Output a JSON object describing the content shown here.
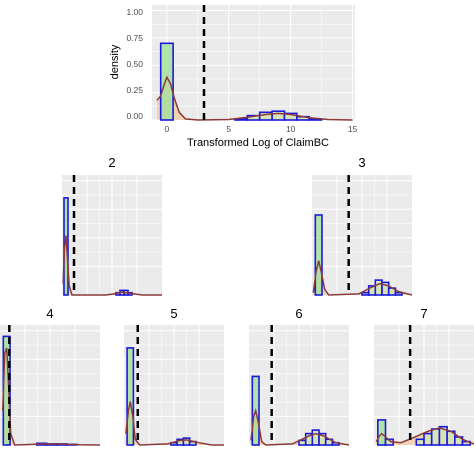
{
  "colors": {
    "panel_bg": "#ebebeb",
    "grid": "#ffffff",
    "bar_fill_outlier": "#a8e0a0",
    "bar_fill_main": "#d4e6b5",
    "bar_border": "#1a1adb",
    "density_fill": "#f2c9a3",
    "density_line": "#8b3a3a",
    "threshold_line": "#000000"
  },
  "main": {
    "xlabel": "Transformed Log of ClaimBC",
    "ylabel": "density",
    "x_ticks": [
      "0",
      "5",
      "10",
      "15"
    ],
    "y_ticks": [
      "0.00",
      "0.25",
      "0.50",
      "0.75",
      "1.00"
    ]
  },
  "chart_data": [
    {
      "panel": "main",
      "title": "",
      "type": "histogram+density",
      "xlabel": "Transformed Log of ClaimBC",
      "ylabel": "density",
      "xlim": [
        -1.2,
        15.2
      ],
      "ylim": [
        0,
        1.05
      ],
      "threshold": 3,
      "bins": [
        [
          -0.5,
          0.5,
          0.7
        ],
        [
          5.5,
          6.5,
          0.01
        ],
        [
          6.5,
          7.5,
          0.04
        ],
        [
          7.5,
          8.5,
          0.07
        ],
        [
          8.5,
          9.5,
          0.08
        ],
        [
          9.5,
          10.5,
          0.06
        ],
        [
          10.5,
          11.5,
          0.03
        ],
        [
          11.5,
          12.5,
          0.01
        ]
      ],
      "density": [
        [
          -0.8,
          0.18
        ],
        [
          -0.5,
          0.22
        ],
        [
          -0.2,
          0.33
        ],
        [
          0,
          0.39
        ],
        [
          0.3,
          0.33
        ],
        [
          0.6,
          0.2
        ],
        [
          1.0,
          0.07
        ],
        [
          1.5,
          0.01
        ],
        [
          2.5,
          0.0
        ],
        [
          5.0,
          0.005
        ],
        [
          6.5,
          0.025
        ],
        [
          8.0,
          0.05
        ],
        [
          9.0,
          0.06
        ],
        [
          10.0,
          0.05
        ],
        [
          11.5,
          0.02
        ],
        [
          13.0,
          0.005
        ],
        [
          15.0,
          0.0
        ]
      ]
    },
    {
      "panel": "2",
      "title": "2",
      "type": "histogram+density",
      "xlim": [
        -1,
        24
      ],
      "ylim": [
        0,
        1.05
      ],
      "threshold": 2,
      "bins": [
        [
          -0.5,
          0.5,
          0.85
        ],
        [
          12.5,
          13.5,
          0.02
        ],
        [
          13.5,
          14.5,
          0.04
        ],
        [
          14.5,
          15.5,
          0.04
        ],
        [
          15.5,
          16.5,
          0.02
        ]
      ],
      "density": [
        [
          -0.7,
          0.1
        ],
        [
          -0.4,
          0.4
        ],
        [
          0,
          0.52
        ],
        [
          0.4,
          0.3
        ],
        [
          0.8,
          0.08
        ],
        [
          1.5,
          0.0
        ],
        [
          10,
          0.0
        ],
        [
          12,
          0.01
        ],
        [
          14,
          0.025
        ],
        [
          16,
          0.015
        ],
        [
          19,
          0.0
        ],
        [
          24,
          0.0
        ]
      ]
    },
    {
      "panel": "3",
      "title": "3",
      "type": "histogram+density",
      "xlim": [
        -1,
        14
      ],
      "ylim": [
        0,
        1.05
      ],
      "threshold": 4.5,
      "bins": [
        [
          -0.5,
          0.5,
          0.7
        ],
        [
          6.5,
          7.5,
          0.02
        ],
        [
          7.5,
          8.5,
          0.08
        ],
        [
          8.5,
          9.5,
          0.13
        ],
        [
          9.5,
          10.5,
          0.11
        ],
        [
          10.5,
          11.5,
          0.06
        ],
        [
          11.5,
          12.5,
          0.02
        ]
      ],
      "density": [
        [
          -0.8,
          0.02
        ],
        [
          -0.4,
          0.2
        ],
        [
          0,
          0.3
        ],
        [
          0.4,
          0.2
        ],
        [
          0.9,
          0.05
        ],
        [
          1.5,
          0.0
        ],
        [
          6,
          0.01
        ],
        [
          8,
          0.07
        ],
        [
          9.2,
          0.1
        ],
        [
          10.5,
          0.08
        ],
        [
          12,
          0.03
        ],
        [
          14,
          0.0
        ]
      ]
    },
    {
      "panel": "4",
      "title": "4",
      "type": "histogram+density",
      "xlim": [
        -1,
        14
      ],
      "ylim": [
        0,
        1.05
      ],
      "threshold": 0.4,
      "bins": [
        [
          -0.5,
          0.5,
          0.95
        ],
        [
          4.5,
          6,
          0.015
        ],
        [
          6,
          7.5,
          0.01
        ],
        [
          7.5,
          9,
          0.01
        ],
        [
          9,
          10.5,
          0.005
        ]
      ],
      "density": [
        [
          -0.6,
          0.3
        ],
        [
          -0.3,
          0.8
        ],
        [
          0,
          0.85
        ],
        [
          0.3,
          0.5
        ],
        [
          0.6,
          0.1
        ],
        [
          1.2,
          0.0
        ],
        [
          4,
          0.005
        ],
        [
          6,
          0.01
        ],
        [
          8,
          0.008
        ],
        [
          11,
          0.002
        ],
        [
          14,
          0.0
        ]
      ]
    },
    {
      "panel": "5",
      "title": "5",
      "type": "histogram+density",
      "xlim": [
        -1,
        15
      ],
      "ylim": [
        0,
        1.05
      ],
      "threshold": 1.2,
      "bins": [
        [
          -0.5,
          0.5,
          0.85
        ],
        [
          6.5,
          7.5,
          0.02
        ],
        [
          7.5,
          8.5,
          0.05
        ],
        [
          8.5,
          9.5,
          0.06
        ],
        [
          9.5,
          10.5,
          0.03
        ]
      ],
      "density": [
        [
          -0.7,
          0.1
        ],
        [
          -0.3,
          0.3
        ],
        [
          0,
          0.38
        ],
        [
          0.4,
          0.25
        ],
        [
          0.8,
          0.05
        ],
        [
          1.5,
          0.0
        ],
        [
          6,
          0.01
        ],
        [
          8,
          0.04
        ],
        [
          9,
          0.045
        ],
        [
          11,
          0.02
        ],
        [
          13,
          0.0
        ],
        [
          15,
          0.0
        ]
      ]
    },
    {
      "panel": "6",
      "title": "6",
      "type": "histogram+density",
      "xlim": [
        -1,
        14
      ],
      "ylim": [
        0,
        1.05
      ],
      "threshold": 2.4,
      "bins": [
        [
          -0.5,
          0.5,
          0.6
        ],
        [
          6.5,
          7.5,
          0.04
        ],
        [
          7.5,
          8.5,
          0.1
        ],
        [
          8.5,
          9.5,
          0.13
        ],
        [
          9.5,
          10.5,
          0.1
        ],
        [
          10.5,
          11.5,
          0.05
        ],
        [
          11.5,
          12.5,
          0.02
        ]
      ],
      "density": [
        [
          -0.7,
          0.04
        ],
        [
          -0.3,
          0.25
        ],
        [
          0,
          0.3
        ],
        [
          0.4,
          0.2
        ],
        [
          0.9,
          0.03
        ],
        [
          1.5,
          0.0
        ],
        [
          5.5,
          0.01
        ],
        [
          8,
          0.08
        ],
        [
          9,
          0.1
        ],
        [
          10.2,
          0.08
        ],
        [
          12,
          0.02
        ],
        [
          14,
          0.0
        ]
      ]
    },
    {
      "panel": "7",
      "title": "7",
      "type": "histogram+density",
      "xlim": [
        -1,
        12
      ],
      "ylim": [
        0,
        1.05
      ],
      "threshold": 3.7,
      "bins": [
        [
          -0.5,
          0.5,
          0.22
        ],
        [
          0.5,
          1.5,
          0.05
        ],
        [
          4.5,
          5.5,
          0.05
        ],
        [
          5.5,
          6.5,
          0.1
        ],
        [
          6.5,
          7.5,
          0.14
        ],
        [
          7.5,
          8.5,
          0.16
        ],
        [
          8.5,
          9.5,
          0.12
        ],
        [
          9.5,
          10.5,
          0.07
        ],
        [
          10.5,
          11.5,
          0.03
        ]
      ],
      "density": [
        [
          -0.7,
          0.03
        ],
        [
          -0.3,
          0.08
        ],
        [
          0,
          0.1
        ],
        [
          0.5,
          0.07
        ],
        [
          1.2,
          0.03
        ],
        [
          2.5,
          0.02
        ],
        [
          4,
          0.06
        ],
        [
          6,
          0.12
        ],
        [
          7.5,
          0.15
        ],
        [
          9,
          0.12
        ],
        [
          10.5,
          0.05
        ],
        [
          12,
          0.01
        ]
      ]
    }
  ]
}
